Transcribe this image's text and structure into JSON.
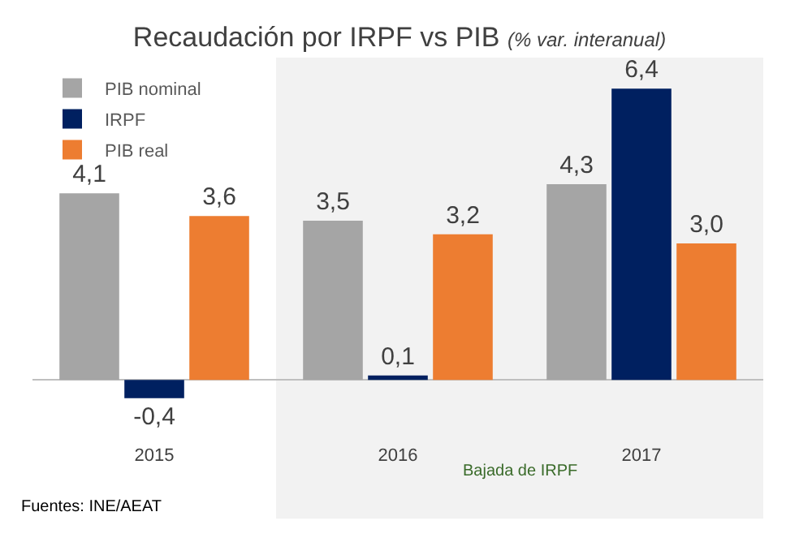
{
  "chart_data": {
    "type": "bar",
    "title": "Recaudación por IRPF vs PIB",
    "subtitle": "(% var. interanual)",
    "categories": [
      "2015",
      "2016",
      "2017"
    ],
    "series": [
      {
        "name": "PIB nominal",
        "color": "#a5a5a5",
        "values": [
          4.1,
          3.5,
          4.3
        ],
        "value_labels": [
          "4,1",
          "3,5",
          "4,3"
        ]
      },
      {
        "name": "IRPF",
        "color": "#002060",
        "values": [
          -0.4,
          0.1,
          6.4
        ],
        "value_labels": [
          "-0,4",
          "0,1",
          "6,4"
        ]
      },
      {
        "name": "PIB real",
        "color": "#ed7d31",
        "values": [
          3.6,
          3.2,
          3.0
        ],
        "value_labels": [
          "3,6",
          "3,2",
          "3,0"
        ]
      }
    ],
    "tick_labels": "x",
    "grid": false,
    "legend": "top left",
    "bands": [
      {
        "axis": "x",
        "from": "2016",
        "to": "2017",
        "label": "Bajada de IRPF",
        "color": "#f2f2f2"
      }
    ],
    "annotations": [
      "Fuentes: INE/AEAT"
    ]
  }
}
